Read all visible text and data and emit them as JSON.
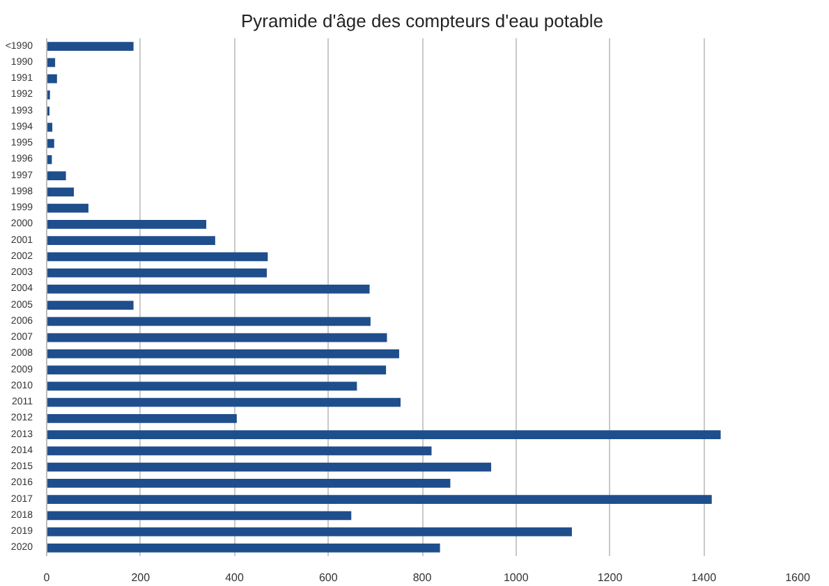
{
  "chart_data": {
    "type": "bar",
    "orientation": "horizontal",
    "title": "Pyramide d'âge des compteurs d'eau potable",
    "categories": [
      "<1990",
      "1990",
      "1991",
      "1992",
      "1993",
      "1994",
      "1995",
      "1996",
      "1997",
      "1998",
      "1999",
      "2000",
      "2001",
      "2002",
      "2003",
      "2004",
      "2005",
      "2006",
      "2007",
      "2008",
      "2009",
      "2010",
      "2011",
      "2012",
      "2013",
      "2014",
      "2015",
      "2016",
      "2017",
      "2018",
      "2019",
      "2020"
    ],
    "values": [
      185,
      18,
      22,
      7,
      6,
      12,
      16,
      11,
      41,
      58,
      89,
      340,
      359,
      471,
      469,
      688,
      185,
      690,
      725,
      751,
      723,
      661,
      754,
      405,
      1436,
      820,
      947,
      860,
      1417,
      649,
      1119,
      838
    ],
    "color": "#1f4e8c",
    "xlim": [
      0,
      1600
    ],
    "xticks": [
      0,
      200,
      400,
      600,
      800,
      1000,
      1200,
      1400,
      1600
    ],
    "grid": "x"
  }
}
